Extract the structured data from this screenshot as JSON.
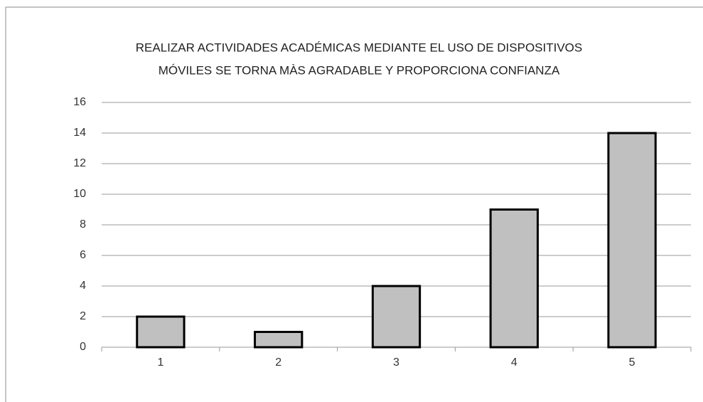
{
  "chart_data": {
    "type": "bar",
    "title": [
      "REALIZAR ACTIVIDADES ACADÉMICAS MEDIANTE EL USO DE DISPOSITIVOS",
      "MÓVILES SE TORNA MÀS AGRADABLE Y PROPORCIONA CONFIANZA"
    ],
    "categories": [
      "1",
      "2",
      "3",
      "4",
      "5"
    ],
    "values": [
      2,
      1,
      4,
      9,
      14
    ],
    "color": "#c0c0c0",
    "ylim": [
      0,
      16
    ],
    "yticks": [
      0,
      2,
      4,
      6,
      8,
      10,
      12,
      14,
      16
    ],
    "grid": true
  }
}
